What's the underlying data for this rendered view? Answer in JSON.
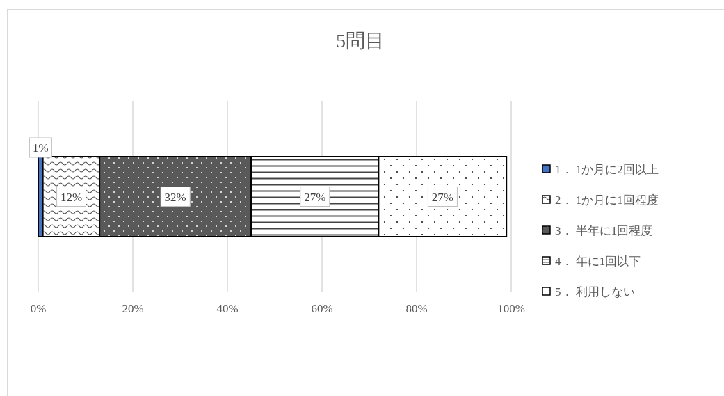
{
  "chart_data": {
    "type": "bar",
    "orientation": "horizontal",
    "stacked": true,
    "title": "5問目",
    "categories": [
      null
    ],
    "series": [
      {
        "name": "1． 1か月に2回以上",
        "color": "#4472c4",
        "values": [
          1
        ],
        "value_labels": [
          "1%"
        ]
      },
      {
        "name": "2． 1か月に1回程度",
        "color": "#ffffff",
        "values": [
          12
        ],
        "value_labels": [
          "12%"
        ]
      },
      {
        "name": "3． 半年に1回程度",
        "color": "#595959",
        "values": [
          32
        ],
        "value_labels": [
          "32%"
        ]
      },
      {
        "name": "4． 年に1回以下",
        "color": "#ffffff",
        "values": [
          27
        ],
        "value_labels": [
          "27%"
        ]
      },
      {
        "name": "5． 利用しない",
        "color": "#ffffff",
        "values": [
          27
        ],
        "value_labels": [
          "27%"
        ]
      }
    ],
    "xlim": [
      0,
      100
    ],
    "xticks": [
      {
        "value": 0,
        "label": "0%"
      },
      {
        "value": 20,
        "label": "20%"
      },
      {
        "value": 40,
        "label": "40%"
      },
      {
        "value": 60,
        "label": "60%"
      },
      {
        "value": 80,
        "label": "80%"
      },
      {
        "value": 100,
        "label": "100%"
      }
    ],
    "grid": "x",
    "legend": "right"
  }
}
